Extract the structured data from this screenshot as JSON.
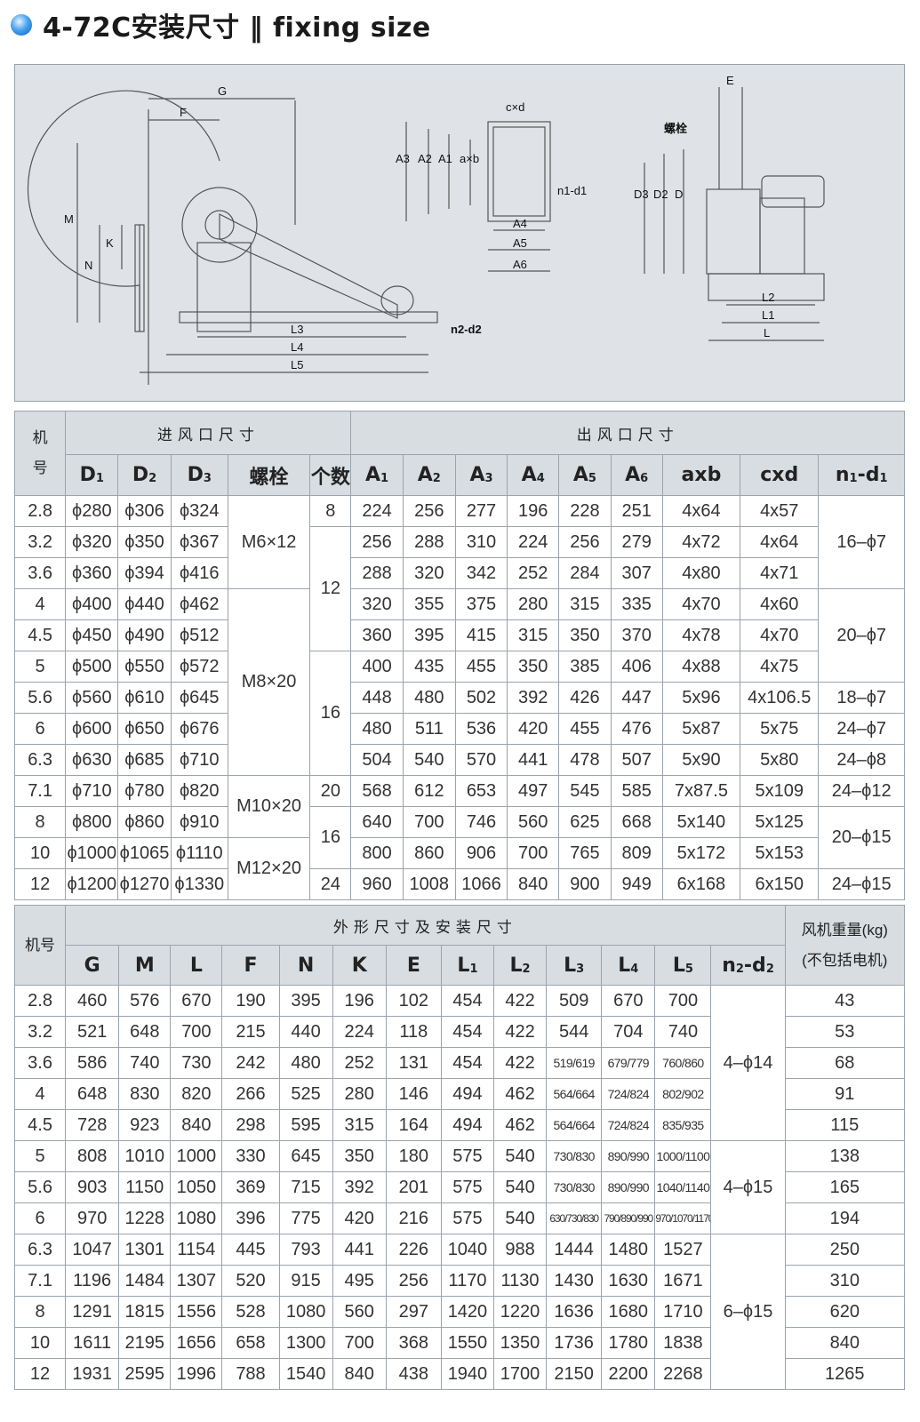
{
  "header": {
    "title": "4-72C安装尺寸 ‖ fixing size",
    "bullet_color": "#2b86e0"
  },
  "drawing": {
    "labels_side": [
      "G",
      "F",
      "M",
      "N",
      "K",
      "L3",
      "L4",
      "L5",
      "n2-d2"
    ],
    "labels_outlet": [
      "A3",
      "A2",
      "A1",
      "a×b",
      "c×d",
      "n1-d1",
      "A4",
      "A5",
      "A6"
    ],
    "labels_front": [
      "E",
      "螺栓",
      "D3",
      "D2",
      "D",
      "L2",
      "L1",
      "L"
    ]
  },
  "inlet_outlet_table": {
    "header_model": "机号",
    "group_inlet": "进风口尺寸",
    "group_outlet": "出风口尺寸",
    "columns": [
      {
        "t": "D",
        "s": "1"
      },
      {
        "t": "D",
        "s": "2"
      },
      {
        "t": "D",
        "s": "3"
      },
      {
        "t": "螺栓",
        "s": ""
      },
      {
        "t": "个数",
        "s": ""
      },
      {
        "t": "A",
        "s": "1"
      },
      {
        "t": "A",
        "s": "2"
      },
      {
        "t": "A",
        "s": "3"
      },
      {
        "t": "A",
        "s": "4"
      },
      {
        "t": "A",
        "s": "5"
      },
      {
        "t": "A",
        "s": "6"
      },
      {
        "t": "axb",
        "s": ""
      },
      {
        "t": "cxd",
        "s": ""
      },
      {
        "t": "n",
        "s": "1",
        "t2": "-d",
        "s2": "1"
      }
    ],
    "rows": [
      {
        "model": "2.8",
        "D1": "ϕ280",
        "D2": "ϕ306",
        "D3": "ϕ324",
        "A1": "224",
        "A2": "256",
        "A3": "277",
        "A4": "196",
        "A5": "228",
        "A6": "251",
        "axb": "4x64",
        "cxd": "4x57"
      },
      {
        "model": "3.2",
        "D1": "ϕ320",
        "D2": "ϕ350",
        "D3": "ϕ367",
        "A1": "256",
        "A2": "288",
        "A3": "310",
        "A4": "224",
        "A5": "256",
        "A6": "279",
        "axb": "4x72",
        "cxd": "4x64"
      },
      {
        "model": "3.6",
        "D1": "ϕ360",
        "D2": "ϕ394",
        "D3": "ϕ416",
        "A1": "288",
        "A2": "320",
        "A3": "342",
        "A4": "252",
        "A5": "284",
        "A6": "307",
        "axb": "4x80",
        "cxd": "4x71"
      },
      {
        "model": "4",
        "D1": "ϕ400",
        "D2": "ϕ440",
        "D3": "ϕ462",
        "A1": "320",
        "A2": "355",
        "A3": "375",
        "A4": "280",
        "A5": "315",
        "A6": "335",
        "axb": "4x70",
        "cxd": "4x60"
      },
      {
        "model": "4.5",
        "D1": "ϕ450",
        "D2": "ϕ490",
        "D3": "ϕ512",
        "A1": "360",
        "A2": "395",
        "A3": "415",
        "A4": "315",
        "A5": "350",
        "A6": "370",
        "axb": "4x78",
        "cxd": "4x70"
      },
      {
        "model": "5",
        "D1": "ϕ500",
        "D2": "ϕ550",
        "D3": "ϕ572",
        "A1": "400",
        "A2": "435",
        "A3": "455",
        "A4": "350",
        "A5": "385",
        "A6": "406",
        "axb": "4x88",
        "cxd": "4x75"
      },
      {
        "model": "5.6",
        "D1": "ϕ560",
        "D2": "ϕ610",
        "D3": "ϕ645",
        "A1": "448",
        "A2": "480",
        "A3": "502",
        "A4": "392",
        "A5": "426",
        "A6": "447",
        "axb": "5x96",
        "cxd": "4x106.5"
      },
      {
        "model": "6",
        "D1": "ϕ600",
        "D2": "ϕ650",
        "D3": "ϕ676",
        "A1": "480",
        "A2": "511",
        "A3": "536",
        "A4": "420",
        "A5": "455",
        "A6": "476",
        "axb": "5x87",
        "cxd": "5x75"
      },
      {
        "model": "6.3",
        "D1": "ϕ630",
        "D2": "ϕ685",
        "D3": "ϕ710",
        "A1": "504",
        "A2": "540",
        "A3": "570",
        "A4": "441",
        "A5": "478",
        "A6": "507",
        "axb": "5x90",
        "cxd": "5x80"
      },
      {
        "model": "7.1",
        "D1": "ϕ710",
        "D2": "ϕ780",
        "D3": "ϕ820",
        "A1": "568",
        "A2": "612",
        "A3": "653",
        "A4": "497",
        "A5": "545",
        "A6": "585",
        "axb": "7x87.5",
        "cxd": "5x109"
      },
      {
        "model": "8",
        "D1": "ϕ800",
        "D2": "ϕ860",
        "D3": "ϕ910",
        "A1": "640",
        "A2": "700",
        "A3": "746",
        "A4": "560",
        "A5": "625",
        "A6": "668",
        "axb": "5x140",
        "cxd": "5x125"
      },
      {
        "model": "10",
        "D1": "ϕ1000",
        "D2": "ϕ1065",
        "D3": "ϕ1110",
        "A1": "800",
        "A2": "860",
        "A3": "906",
        "A4": "700",
        "A5": "765",
        "A6": "809",
        "axb": "5x172",
        "cxd": "5x153"
      },
      {
        "model": "12",
        "D1": "ϕ1200",
        "D2": "ϕ1270",
        "D3": "ϕ1330",
        "A1": "960",
        "A2": "1008",
        "A3": "1066",
        "A4": "840",
        "A5": "900",
        "A6": "949",
        "axb": "6x168",
        "cxd": "6x150"
      }
    ],
    "bolt_groups": [
      {
        "value": "M6×12",
        "span": 3
      },
      {
        "value": "M8×20",
        "span": 6
      },
      {
        "value": "M10×20",
        "span": 2
      },
      {
        "value": "M12×20",
        "span": 2
      }
    ],
    "count_groups": [
      {
        "value": "8",
        "span": 1
      },
      {
        "value": "12",
        "span": 4
      },
      {
        "value": "16",
        "span": 4
      },
      {
        "value": "20",
        "span": 1
      },
      {
        "value": "16",
        "span": 2
      },
      {
        "value": "24",
        "span": 1
      }
    ],
    "n1d1_groups": [
      {
        "value": "16–ϕ7",
        "span": 3
      },
      {
        "value": "20–ϕ7",
        "span": 3
      },
      {
        "value": "18–ϕ7",
        "span": 1
      },
      {
        "value": "24–ϕ7",
        "span": 1
      },
      {
        "value": "24–ϕ8",
        "span": 1
      },
      {
        "value": "24–ϕ12",
        "span": 1
      },
      {
        "value": "20–ϕ15",
        "span": 2
      },
      {
        "value": "24–ϕ15",
        "span": 1
      }
    ]
  },
  "install_table": {
    "header_model": "机号",
    "group_title": "外形尺寸及安装尺寸",
    "weight_header_1": "风机重量(kg)",
    "weight_header_2": "(不包括电机)",
    "columns": [
      {
        "t": "G",
        "s": ""
      },
      {
        "t": "M",
        "s": ""
      },
      {
        "t": "L",
        "s": ""
      },
      {
        "t": "F",
        "s": ""
      },
      {
        "t": "N",
        "s": ""
      },
      {
        "t": "K",
        "s": ""
      },
      {
        "t": "E",
        "s": ""
      },
      {
        "t": "L",
        "s": "1"
      },
      {
        "t": "L",
        "s": "2"
      },
      {
        "t": "L",
        "s": "3"
      },
      {
        "t": "L",
        "s": "4"
      },
      {
        "t": "L",
        "s": "5"
      },
      {
        "t": "n",
        "s": "2",
        "t2": "-d",
        "s2": "2"
      }
    ],
    "rows": [
      {
        "model": "2.8",
        "G": "460",
        "M": "576",
        "L": "670",
        "F": "190",
        "N": "395",
        "K": "196",
        "E": "102",
        "L1": "454",
        "L2": "422",
        "L3": "509",
        "L4": "670",
        "L5": "700",
        "weight": "43"
      },
      {
        "model": "3.2",
        "G": "521",
        "M": "648",
        "L": "700",
        "F": "215",
        "N": "440",
        "K": "224",
        "E": "118",
        "L1": "454",
        "L2": "422",
        "L3": "544",
        "L4": "704",
        "L5": "740",
        "weight": "53"
      },
      {
        "model": "3.6",
        "G": "586",
        "M": "740",
        "L": "730",
        "F": "242",
        "N": "480",
        "K": "252",
        "E": "131",
        "L1": "454",
        "L2": "422",
        "L3": "519/619",
        "L4": "679/779",
        "L5": "760/860",
        "weight": "68"
      },
      {
        "model": "4",
        "G": "648",
        "M": "830",
        "L": "820",
        "F": "266",
        "N": "525",
        "K": "280",
        "E": "146",
        "L1": "494",
        "L2": "462",
        "L3": "564/664",
        "L4": "724/824",
        "L5": "802/902",
        "weight": "91"
      },
      {
        "model": "4.5",
        "G": "728",
        "M": "923",
        "L": "840",
        "F": "298",
        "N": "595",
        "K": "315",
        "E": "164",
        "L1": "494",
        "L2": "462",
        "L3": "564/664",
        "L4": "724/824",
        "L5": "835/935",
        "weight": "115"
      },
      {
        "model": "5",
        "G": "808",
        "M": "1010",
        "L": "1000",
        "F": "330",
        "N": "645",
        "K": "350",
        "E": "180",
        "L1": "575",
        "L2": "540",
        "L3": "730/830",
        "L4": "890/990",
        "L5": "1000/1100",
        "weight": "138"
      },
      {
        "model": "5.6",
        "G": "903",
        "M": "1150",
        "L": "1050",
        "F": "369",
        "N": "715",
        "K": "392",
        "E": "201",
        "L1": "575",
        "L2": "540",
        "L3": "730/830",
        "L4": "890/990",
        "L5": "1040/1140",
        "weight": "165"
      },
      {
        "model": "6",
        "G": "970",
        "M": "1228",
        "L": "1080",
        "F": "396",
        "N": "775",
        "K": "420",
        "E": "216",
        "L1": "575",
        "L2": "540",
        "L3": "630/730/830",
        "L4": "790/890/990",
        "L5": "970/1070/1170",
        "weight": "194"
      },
      {
        "model": "6.3",
        "G": "1047",
        "M": "1301",
        "L": "1154",
        "F": "445",
        "N": "793",
        "K": "441",
        "E": "226",
        "L1": "1040",
        "L2": "988",
        "L3": "1444",
        "L4": "1480",
        "L5": "1527",
        "weight": "250"
      },
      {
        "model": "7.1",
        "G": "1196",
        "M": "1484",
        "L": "1307",
        "F": "520",
        "N": "915",
        "K": "495",
        "E": "256",
        "L1": "1170",
        "L2": "1130",
        "L3": "1430",
        "L4": "1630",
        "L5": "1671",
        "weight": "310"
      },
      {
        "model": "8",
        "G": "1291",
        "M": "1815",
        "L": "1556",
        "F": "528",
        "N": "1080",
        "K": "560",
        "E": "297",
        "L1": "1420",
        "L2": "1220",
        "L3": "1636",
        "L4": "1680",
        "L5": "1710",
        "weight": "620"
      },
      {
        "model": "10",
        "G": "1611",
        "M": "2195",
        "L": "1656",
        "F": "658",
        "N": "1300",
        "K": "700",
        "E": "368",
        "L1": "1550",
        "L2": "1350",
        "L3": "1736",
        "L4": "1780",
        "L5": "1838",
        "weight": "840"
      },
      {
        "model": "12",
        "G": "1931",
        "M": "2595",
        "L": "1996",
        "F": "788",
        "N": "1540",
        "K": "840",
        "E": "438",
        "L1": "1940",
        "L2": "1700",
        "L3": "2150",
        "L4": "2200",
        "L5": "2268",
        "weight": "1265"
      }
    ],
    "n2d2_groups": [
      {
        "value": "4–ϕ14",
        "span": 5
      },
      {
        "value": "4–ϕ15",
        "span": 3
      },
      {
        "value": "6–ϕ15",
        "span": 5
      }
    ]
  }
}
